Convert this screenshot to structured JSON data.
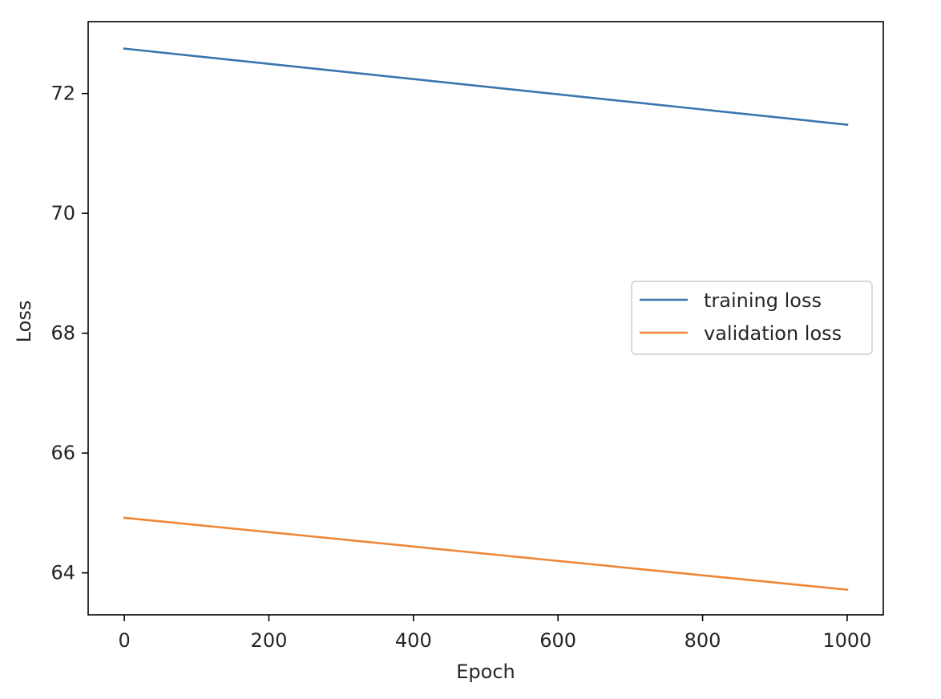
{
  "chart_data": {
    "type": "line",
    "title": "",
    "xlabel": "Epoch",
    "ylabel": "Loss",
    "xlim": [
      -50,
      1050
    ],
    "ylim": [
      63.3,
      73.2
    ],
    "xticks": [
      0,
      200,
      400,
      600,
      800,
      1000
    ],
    "yticks": [
      64,
      66,
      68,
      70,
      72
    ],
    "xtick_labels": [
      "0",
      "200",
      "400",
      "600",
      "800",
      "1000"
    ],
    "ytick_labels": [
      "64",
      "66",
      "68",
      "70",
      "72"
    ],
    "grid": false,
    "legend_position": "center-right",
    "series": [
      {
        "name": "training loss",
        "color": "#3b75af",
        "x": [
          0,
          1000
        ],
        "y": [
          72.75,
          71.48
        ]
      },
      {
        "name": "validation loss",
        "color": "#ef8636",
        "x": [
          0,
          1000
        ],
        "y": [
          64.92,
          63.72
        ]
      }
    ]
  }
}
